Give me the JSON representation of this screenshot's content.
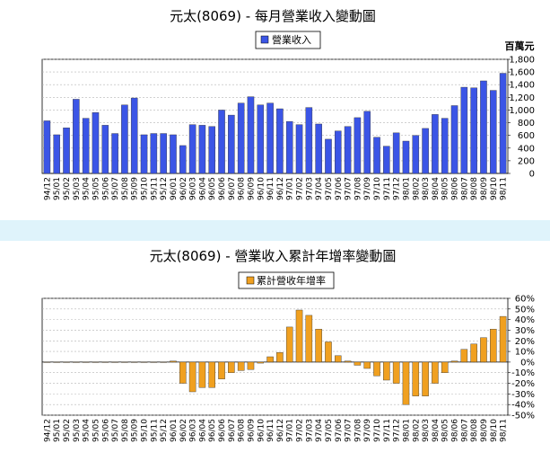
{
  "chart_data": [
    {
      "type": "bar",
      "title": "元太(8069) - 每月營業收入變動圖",
      "legend": "營業收入",
      "unit": "百萬元",
      "color": "#3b55e6",
      "ylim": [
        0,
        1800
      ],
      "ytick_labels": [
        "1,800",
        "1,600",
        "1,400",
        "1,200",
        "1,000",
        "800",
        "600",
        "400",
        "200",
        "0"
      ],
      "categories": [
        "94/12",
        "95/01",
        "95/02",
        "95/03",
        "95/04",
        "95/05",
        "95/06",
        "95/07",
        "95/08",
        "95/09",
        "95/10",
        "95/11",
        "95/12",
        "96/01",
        "96/02",
        "96/03",
        "96/04",
        "96/05",
        "96/06",
        "96/07",
        "96/08",
        "96/09",
        "96/10",
        "96/11",
        "96/12",
        "97/01",
        "97/02",
        "97/03",
        "97/04",
        "97/05",
        "97/06",
        "97/07",
        "97/08",
        "97/09",
        "97/10",
        "97/11",
        "97/12",
        "98/01",
        "98/02",
        "98/03",
        "98/04",
        "98/05",
        "98/06",
        "98/07",
        "98/08",
        "98/09",
        "98/10",
        "98/11"
      ],
      "values": [
        830,
        610,
        720,
        1170,
        870,
        960,
        760,
        630,
        1080,
        1190,
        610,
        630,
        630,
        610,
        440,
        770,
        760,
        740,
        1000,
        920,
        1110,
        1210,
        1080,
        1110,
        1020,
        820,
        770,
        1040,
        780,
        540,
        670,
        740,
        880,
        980,
        570,
        430,
        640,
        510,
        600,
        710,
        930,
        870,
        1070,
        1360,
        1350,
        1460,
        1310,
        1580
      ]
    },
    {
      "type": "bar",
      "title": "元太(8069) -  營業收入累計年增率變動圖",
      "legend": "累計營收年增率",
      "color": "#f0a020",
      "ylim": [
        -50,
        60
      ],
      "ytick_labels": [
        "60%",
        "50%",
        "40%",
        "30%",
        "20%",
        "10%",
        "0%",
        "-10%",
        "-20%",
        "-30%",
        "-40%",
        "-50%"
      ],
      "categories": [
        "94/12",
        "95/01",
        "95/02",
        "95/03",
        "95/04",
        "95/05",
        "95/06",
        "95/07",
        "95/08",
        "95/09",
        "95/10",
        "95/11",
        "95/12",
        "96/01",
        "96/02",
        "96/03",
        "96/04",
        "96/05",
        "96/06",
        "96/07",
        "96/08",
        "96/09",
        "96/10",
        "96/11",
        "96/12",
        "97/01",
        "97/02",
        "97/03",
        "97/04",
        "97/05",
        "97/06",
        "97/07",
        "97/08",
        "97/09",
        "97/10",
        "97/11",
        "97/12",
        "98/01",
        "98/02",
        "98/03",
        "98/04",
        "98/05",
        "98/06",
        "98/07",
        "98/08",
        "98/09",
        "98/10",
        "98/11"
      ],
      "values": [
        0,
        0,
        0,
        0,
        0,
        0,
        0,
        0,
        0,
        0,
        0,
        0,
        0,
        1,
        -20,
        -28,
        -24,
        -24,
        -16,
        -10,
        -8,
        -7,
        -1,
        5,
        9,
        33,
        49,
        44,
        31,
        19,
        6,
        1,
        -3,
        -6,
        -13,
        -17,
        -20,
        -40,
        -32,
        -32,
        -20,
        -10,
        1,
        12,
        17,
        23,
        31,
        43
      ]
    }
  ]
}
